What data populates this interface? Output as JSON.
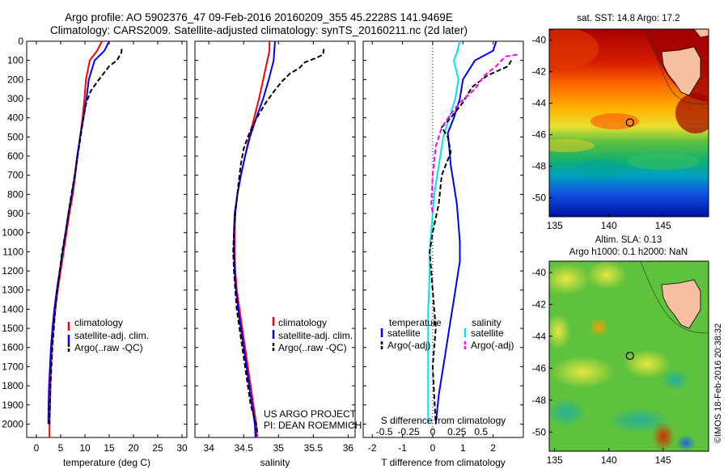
{
  "header": {
    "line1": "Argo profile: AO 5902376_47 09-Feb-2016 20160209_355 45.2228S 141.9469E",
    "line2": "Climatology: CARS2009. Satellite-adjusted climatology: synTS_20160211.nc (2d later)"
  },
  "colors": {
    "climatology": "#ff0000",
    "satellite": "#0000ff",
    "argo": "#000000",
    "sal_satellite": "#00e5e5",
    "sal_argo": "#ff00ff"
  },
  "depth_ticks": [
    "0",
    "100",
    "200",
    "300",
    "400",
    "500",
    "600",
    "700",
    "800",
    "900",
    "1000",
    "1100",
    "1200",
    "1300",
    "1400",
    "1500",
    "1600",
    "1700",
    "1800",
    "1900",
    "2000"
  ],
  "chart_data": [
    {
      "type": "line",
      "id": "temperature",
      "xlabel": "temperature (deg C)",
      "xlim": [
        -2,
        31
      ],
      "ylim": [
        2070,
        0
      ],
      "y_reversed": true,
      "xticks": [
        "0",
        "5",
        "10",
        "15",
        "20",
        "25",
        "30"
      ],
      "xtick_values": [
        0,
        5,
        10,
        15,
        20,
        25,
        30
      ],
      "legend": [
        "climatology",
        "satellite-adj. clim.",
        "Argo(..raw -QC)"
      ],
      "series": [
        {
          "name": "climatology",
          "color": "#ff0000",
          "dash": "none",
          "x": [
            13.5,
            12.5,
            11.0,
            10.2,
            9.9,
            9.5,
            9.0,
            8.5,
            8.0,
            7.5,
            6.8,
            6.2,
            5.6,
            5.0,
            4.4,
            3.9,
            3.5,
            3.2,
            3.0,
            2.9,
            2.8,
            2.7,
            2.7
          ],
          "y": [
            0,
            50,
            100,
            200,
            300,
            400,
            500,
            600,
            700,
            800,
            900,
            1000,
            1100,
            1200,
            1300,
            1400,
            1500,
            1600,
            1700,
            1800,
            1900,
            2000,
            2070
          ]
        },
        {
          "name": "satellite-adj. clim.",
          "color": "#0000ff",
          "dash": "none",
          "x": [
            15.0,
            14.0,
            12.0,
            10.8,
            10.3,
            9.7,
            9.0,
            8.4,
            7.9,
            7.3,
            6.6,
            6.0,
            5.4,
            4.8,
            4.2,
            3.7,
            3.3,
            3.0,
            2.8,
            2.6,
            2.5,
            2.45
          ],
          "y": [
            0,
            50,
            100,
            200,
            300,
            400,
            500,
            600,
            700,
            800,
            900,
            1000,
            1100,
            1200,
            1300,
            1400,
            1500,
            1600,
            1700,
            1800,
            1900,
            2000
          ]
        },
        {
          "name": "Argo(..raw -QC)",
          "color": "#000000",
          "dash": "6,3",
          "x": [
            17.6,
            17.5,
            16.6,
            15.0,
            13.8,
            12.6,
            11.2,
            10.3,
            9.7,
            9.1,
            8.5,
            7.9,
            7.2,
            6.6,
            6.0,
            5.3,
            4.8,
            4.3,
            3.9,
            3.6,
            3.3,
            3.1,
            2.9,
            2.8,
            2.7
          ],
          "y": [
            40,
            60,
            100,
            130,
            170,
            210,
            260,
            320,
            400,
            500,
            600,
            700,
            800,
            900,
            1000,
            1100,
            1200,
            1300,
            1400,
            1500,
            1600,
            1700,
            1800,
            1900,
            2000
          ]
        }
      ]
    },
    {
      "type": "line",
      "id": "salinity",
      "xlabel": "salinity",
      "xlim": [
        33.8,
        36.1
      ],
      "ylim": [
        2070,
        0
      ],
      "y_reversed": true,
      "xticks": [
        "34",
        "34.5",
        "35",
        "35.5",
        "36"
      ],
      "xtick_values": [
        34,
        34.5,
        35,
        35.5,
        36
      ],
      "legend": [
        "climatology",
        "satellite-adj. clim.",
        "Argo(..raw -QC)"
      ],
      "series": [
        {
          "name": "climatology",
          "color": "#ff0000",
          "dash": "none",
          "x": [
            34.87,
            34.87,
            34.84,
            34.78,
            34.72,
            34.65,
            34.58,
            34.52,
            34.46,
            34.41,
            34.38,
            34.37,
            34.37,
            34.38,
            34.4,
            34.44,
            34.48,
            34.52,
            34.56,
            34.6,
            34.64,
            34.68,
            34.69
          ],
          "y": [
            0,
            50,
            100,
            200,
            300,
            400,
            500,
            600,
            700,
            800,
            900,
            1000,
            1100,
            1200,
            1300,
            1400,
            1500,
            1600,
            1700,
            1800,
            1900,
            2000,
            2070
          ]
        },
        {
          "name": "satellite-adj. clim.",
          "color": "#0000ff",
          "dash": "none",
          "x": [
            34.95,
            34.94,
            34.93,
            34.86,
            34.78,
            34.68,
            34.59,
            34.52,
            34.46,
            34.41,
            34.37,
            34.36,
            34.36,
            34.37,
            34.39,
            34.42,
            34.46,
            34.5,
            34.54,
            34.58,
            34.62,
            34.66,
            34.67
          ],
          "y": [
            0,
            50,
            100,
            200,
            300,
            400,
            500,
            600,
            700,
            800,
            900,
            1000,
            1100,
            1200,
            1300,
            1400,
            1500,
            1600,
            1700,
            1800,
            1900,
            2000,
            2070
          ]
        },
        {
          "name": "Argo(..raw -QC)",
          "color": "#000000",
          "dash": "6,3",
          "x": [
            35.65,
            35.64,
            35.52,
            35.38,
            35.3,
            35.16,
            35.05,
            34.94,
            34.82,
            34.72,
            34.63,
            34.56,
            34.5,
            34.46,
            34.42,
            34.38,
            34.36,
            34.35,
            34.36,
            34.38,
            34.4,
            34.44,
            34.48,
            34.52,
            34.56,
            34.6,
            34.64,
            34.68,
            34.7
          ],
          "y": [
            40,
            70,
            90,
            110,
            140,
            170,
            210,
            260,
            320,
            380,
            440,
            500,
            560,
            640,
            760,
            900,
            1000,
            1100,
            1200,
            1300,
            1400,
            1500,
            1600,
            1700,
            1800,
            1900,
            1950,
            2000,
            2060
          ]
        }
      ]
    },
    {
      "type": "line",
      "id": "difference",
      "xlabel": "T difference from climatology",
      "xlabel2": "S difference from climatology",
      "xlim": [
        -2.3,
        3.0
      ],
      "ylim": [
        2070,
        0
      ],
      "y_reversed": true,
      "xticks": [
        "-2",
        "-1",
        "0",
        "1",
        "2"
      ],
      "xtick_values": [
        -2,
        -1,
        0,
        1,
        2
      ],
      "xticks2": [
        "-0.5",
        "-0.25",
        "0",
        "0.25",
        "0.5"
      ],
      "xtick2_values": [
        -1.6,
        -0.8,
        0,
        0.8,
        1.6
      ],
      "legend_temperature_heading": "temperature",
      "legend_salinity_heading": "salinity",
      "legend": [
        "satellite",
        "Argo(-adj)",
        "satellite",
        "Argo(-adj)"
      ],
      "series": [
        {
          "name": "satellite",
          "group": "temperature",
          "color": "#0000ff",
          "dash": "none",
          "x": [
            2.1,
            2.0,
            1.4,
            1.0,
            0.9,
            0.7,
            0.5,
            0.55,
            0.6,
            0.7,
            0.8,
            0.85,
            0.9,
            0.9,
            0.8,
            0.7,
            0.6,
            0.5,
            0.4,
            0.3,
            0.2,
            0.1
          ],
          "y": [
            0,
            50,
            100,
            200,
            300,
            400,
            480,
            560,
            650,
            750,
            850,
            950,
            1050,
            1150,
            1250,
            1350,
            1450,
            1550,
            1650,
            1750,
            1850,
            2000
          ]
        },
        {
          "name": "satellite",
          "group": "salinity",
          "color": "#00e5e5",
          "dash": "none",
          "x": [
            0.9,
            0.8,
            0.7,
            0.85,
            0.75,
            0.55,
            0.35,
            0.25,
            0.15,
            0.05,
            0.0,
            -0.05,
            -0.1,
            -0.1,
            -0.12,
            -0.15,
            -0.15,
            -0.15,
            -0.15,
            -0.15,
            -0.15
          ],
          "y": [
            0,
            60,
            100,
            200,
            300,
            400,
            500,
            600,
            700,
            800,
            900,
            1000,
            1100,
            1200,
            1300,
            1400,
            1500,
            1600,
            1700,
            1800,
            2000
          ]
        },
        {
          "name": "Argo(-adj)",
          "group": "temperature",
          "color": "#000000",
          "dash": "6,3",
          "x": [
            2.6,
            2.5,
            1.8,
            1.3,
            1.0,
            0.6,
            0.3,
            0.5,
            0.6,
            0.3,
            0.2,
            0.0,
            -0.1,
            -0.05,
            0.0,
            0.05,
            0.1,
            0.05,
            0.0,
            0.05,
            0.1
          ],
          "y": [
            100,
            130,
            180,
            240,
            320,
            400,
            450,
            500,
            580,
            700,
            850,
            1000,
            1100,
            1200,
            1300,
            1400,
            1500,
            1600,
            1700,
            1850,
            2000
          ]
        },
        {
          "name": "Argo(-adj)",
          "group": "salinity",
          "color": "#ff00ff",
          "dash": "6,3",
          "x": [
            2.8,
            2.4,
            2.1,
            1.7,
            1.4,
            0.9,
            0.6,
            0.3,
            0.1,
            0.0,
            -0.05,
            0.0
          ],
          "y": [
            70,
            80,
            130,
            180,
            250,
            320,
            380,
            450,
            550,
            700,
            850,
            900
          ]
        }
      ]
    }
  ],
  "annotations": {
    "project": "US ARGO PROJECT",
    "pi": "PI: DEAN ROEMMICH"
  },
  "maps": {
    "sst_title": "sat. SST: 14.8 Argo: 17.2",
    "sla_title_1": "Altim. SLA: 0.13",
    "sla_title_2": "Argo h1000: 0.1 h2000: NaN",
    "lon_ticks": [
      "135",
      "140",
      "145"
    ],
    "lat_ticks": [
      "-40",
      "-42",
      "-44",
      "-46",
      "-48",
      "-50"
    ],
    "float_position": {
      "lon": 141.9469,
      "lat": -45.2228
    },
    "credit": "©IMOS 18-Feb-2016 20:38:32"
  }
}
